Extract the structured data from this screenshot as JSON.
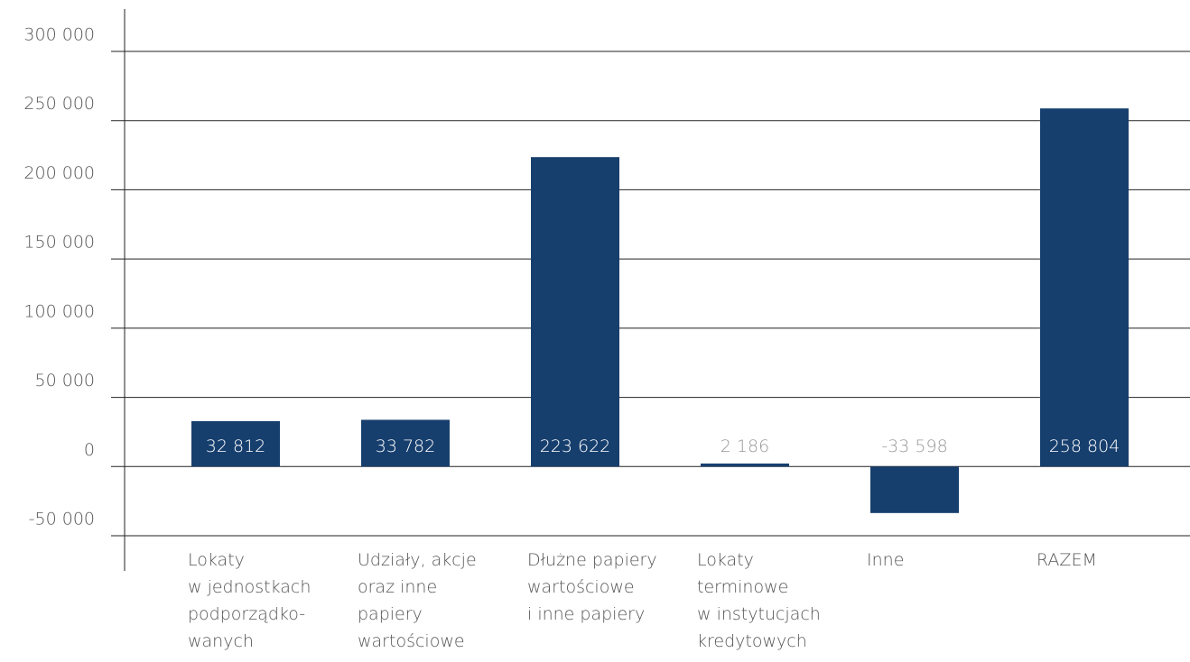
{
  "chart_data": {
    "type": "bar",
    "categories": [
      "Lokaty\nw jednostkach\npodporządko-\nwanych",
      "Udziały, akcje\noraz inne\npapiery\nwartościowe",
      "Dłużne papiery\nwartościowe\ni inne papiery",
      "Lokaty\nterminowe\nw instytucjach\nkredytowych",
      "Inne",
      "RAZEM"
    ],
    "values": [
      32812,
      33782,
      223622,
      2186,
      -33598,
      258804
    ],
    "value_labels": [
      "32 812",
      "33 782",
      "223 622",
      "2 186",
      "-33 598",
      "258 804"
    ],
    "color": "#173f6e",
    "ylim": [
      -50000,
      300000
    ],
    "yticks": [
      {
        "value": -50000,
        "label": "-50 000"
      },
      0,
      {
        "value": 50000,
        "label": "50 000"
      },
      {
        "value": 100000,
        "label": "100 000"
      },
      {
        "value": 150000,
        "label": "150 000"
      },
      {
        "value": 200000,
        "label": "200 000"
      },
      {
        "value": 250000,
        "label": "250 000"
      },
      {
        "value": 300000,
        "label": "300 000"
      }
    ],
    "grid": true
  }
}
